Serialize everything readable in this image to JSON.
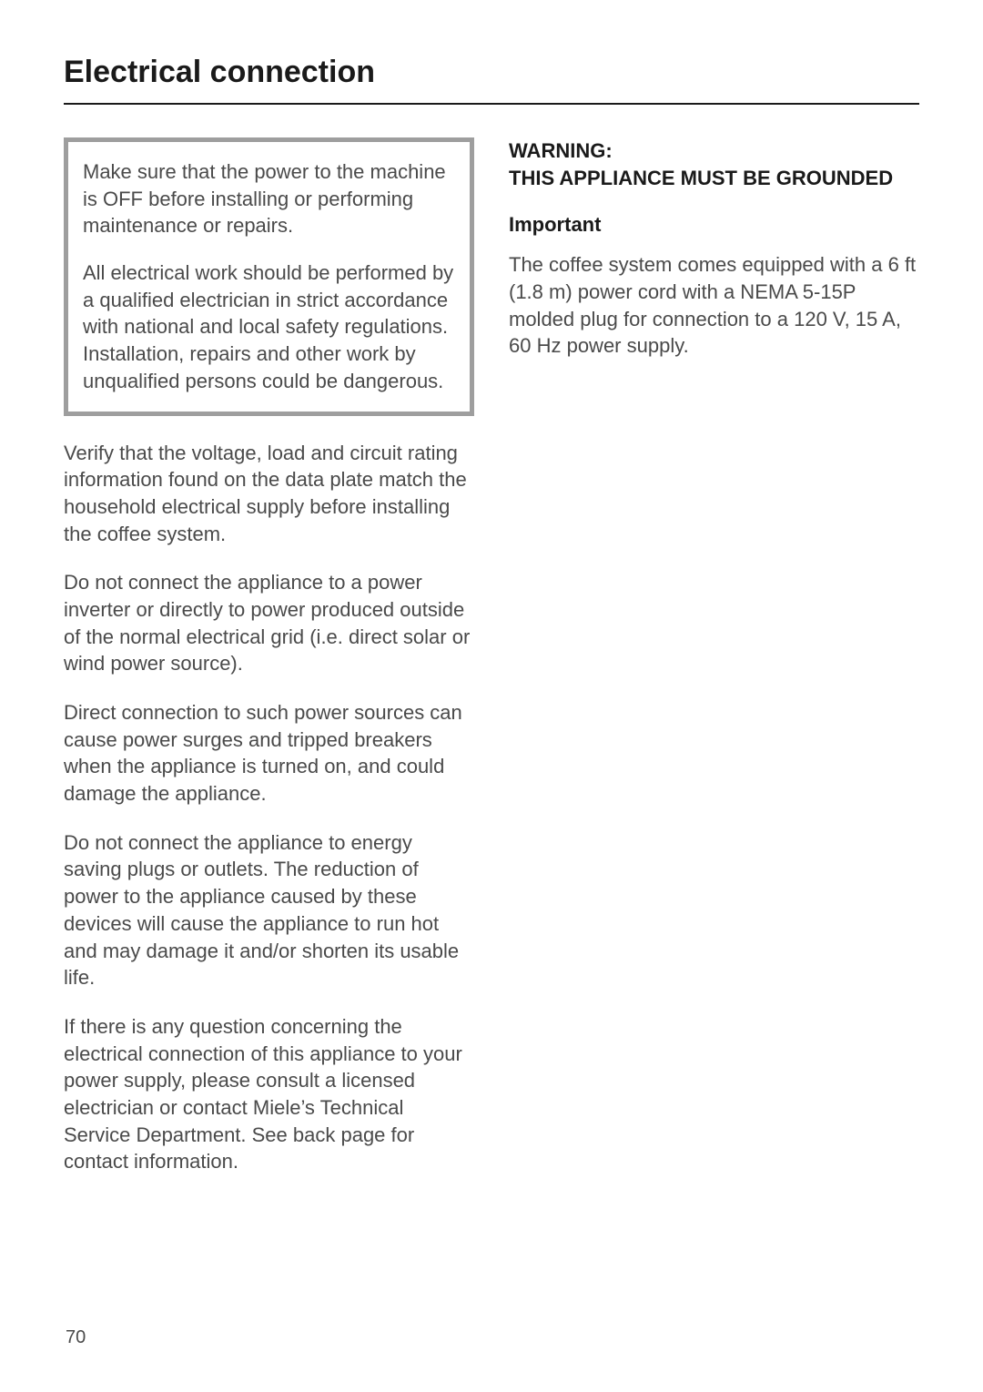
{
  "title": "Electrical connection",
  "leftColumn": {
    "callout": {
      "p1": "Make sure that the power to the machine is OFF before installing or performing maintenance or repairs.",
      "p2": "All electrical work should be performed by a qualified electrician in strict accordance with national and local safety regulations. Installation, repairs and other work by unqualified persons could be dangerous."
    },
    "p1": "Verify that the voltage, load and circuit rating information found on the data plate match the household electrical supply before installing the coffee system.",
    "p2": "Do not connect the appliance to a power inverter or directly to power produced outside of the normal electrical grid (i.e. direct solar or wind power source).",
    "p3": "Direct connection to such power sources can cause power surges and tripped breakers when the appliance is turned on, and could damage the appliance.",
    "p4": "Do not connect the appliance to energy saving plugs or outlets. The reduction of power to the appliance caused by these devices will cause the appliance to run hot and may damage it and/or shorten its usable life.",
    "p5": "If there is any question concerning the electrical connection of this appliance to your power supply, please consult a licensed electrician or contact Miele’s Technical Service Department. See back page for contact information."
  },
  "rightColumn": {
    "warning_line1": "WARNING:",
    "warning_line2": "THIS APPLIANCE MUST BE GROUNDED",
    "important_head": "Important",
    "important_body": "The coffee system comes equipped with a 6 ft (1.8 m) power cord with a NEMA 5-15P molded plug for connection to a 120 V, 15 A, 60 Hz power supply."
  },
  "pageNumber": "70",
  "colors": {
    "text": "#4a4a4a",
    "heading": "#1a1a1a",
    "calloutBorder": "#9e9e9e",
    "background": "#ffffff"
  },
  "typography": {
    "titleSize": 34,
    "bodySize": 22,
    "lineHeight": 1.35
  }
}
